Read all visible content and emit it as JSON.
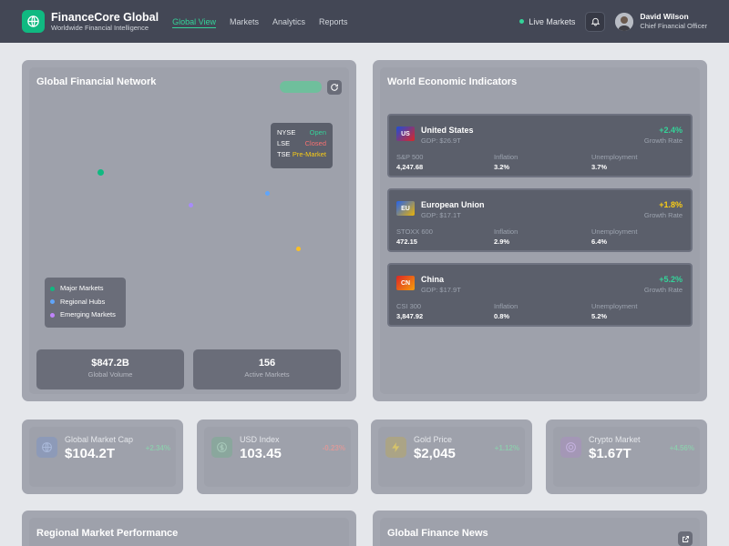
{
  "app": {
    "title": "FinanceCore Global",
    "subtitle": "Worldwide Financial Intelligence"
  },
  "nav": [
    {
      "label": "Global View",
      "active": true
    },
    {
      "label": "Markets",
      "active": false
    },
    {
      "label": "Analytics",
      "active": false
    },
    {
      "label": "Reports",
      "active": false
    }
  ],
  "header": {
    "live_label": "Live Markets",
    "user_name": "David Wilson",
    "user_role": "Chief Financial Officer"
  },
  "network": {
    "title": "Global Financial Network",
    "exchanges": [
      {
        "name": "NYSE",
        "status": "Open",
        "color": "#34d399"
      },
      {
        "name": "LSE",
        "status": "Closed",
        "color": "#f87171"
      },
      {
        "name": "TSE",
        "status": "Pre-Market",
        "color": "#facc15"
      }
    ],
    "legend": [
      {
        "label": "Major Markets",
        "color": "#10b981"
      },
      {
        "label": "Regional Hubs",
        "color": "#60a5fa"
      },
      {
        "label": "Emerging Markets",
        "color": "#c084fc"
      }
    ],
    "stats": [
      {
        "value": "$847.2B",
        "label": "Global Volume"
      },
      {
        "value": "156",
        "label": "Active Markets"
      }
    ]
  },
  "indicators": {
    "title": "World Economic Indicators",
    "items": [
      {
        "code": "US",
        "name": "United States",
        "gdp": "GDP: $26.9T",
        "growth": "+2.4%",
        "growth_label": "Growth Rate",
        "growth_color": "#34d399",
        "flag_colors": [
          "#1d4ed8",
          "#dc2626"
        ],
        "index_label": "S&P 500",
        "index_value": "4,247.68",
        "inflation_label": "Inflation",
        "inflation": "3.2%",
        "unemployment_label": "Unemployment",
        "unemployment": "3.7%"
      },
      {
        "code": "EU",
        "name": "European Union",
        "gdp": "GDP: $17.1T",
        "growth": "+1.8%",
        "growth_label": "Growth Rate",
        "growth_color": "#facc15",
        "flag_colors": [
          "#2563eb",
          "#eab308"
        ],
        "index_label": "STOXX 600",
        "index_value": "472.15",
        "inflation_label": "Inflation",
        "inflation": "2.9%",
        "unemployment_label": "Unemployment",
        "unemployment": "6.4%"
      },
      {
        "code": "CN",
        "name": "China",
        "gdp": "GDP: $17.9T",
        "growth": "+5.2%",
        "growth_label": "Growth Rate",
        "growth_color": "#34d399",
        "flag_colors": [
          "#dc2626",
          "#f59e0b"
        ],
        "index_label": "CSI 300",
        "index_value": "3,847.92",
        "inflation_label": "Inflation",
        "inflation": "0.8%",
        "unemployment_label": "Unemployment",
        "unemployment": "5.2%"
      }
    ]
  },
  "metrics": [
    {
      "label": "Global Market Cap",
      "value": "$104.2T",
      "change": "+2.34%",
      "change_color": "#34d399",
      "icon": "globe-icon",
      "icon_bg": "#8d9ab8"
    },
    {
      "label": "USD Index",
      "value": "103.45",
      "change": "-0.23%",
      "change_color": "#f87171",
      "icon": "dollar-icon",
      "icon_bg": "#8aa79d"
    },
    {
      "label": "Gold Price",
      "value": "$2,045",
      "change": "+1.12%",
      "change_color": "#34d399",
      "icon": "bolt-icon",
      "icon_bg": "#aba486"
    },
    {
      "label": "Crypto Market",
      "value": "$1.67T",
      "change": "+4.56%",
      "change_color": "#34d399",
      "icon": "crypto-icon",
      "icon_bg": "#a497b6"
    }
  ],
  "regional": {
    "title": "Regional Market Performance"
  },
  "news": {
    "title": "Global Finance News"
  }
}
